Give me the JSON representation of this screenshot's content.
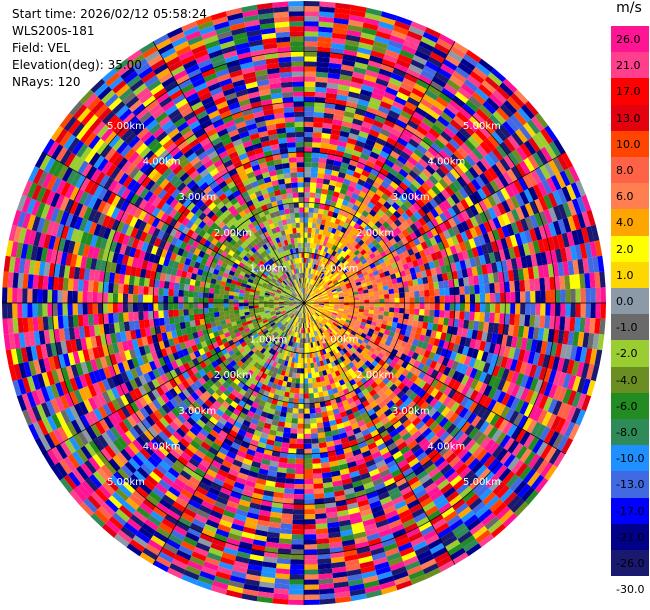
{
  "info": {
    "start_time": "Start time: 2026/02/12 05:58:24",
    "instrument": "WLS200s-181",
    "field": "Field: VEL",
    "elevation": "Elevation(deg): 35.00",
    "nrays": "NRays: 120"
  },
  "chart_data": {
    "type": "heatmap",
    "projection": "polar-ppi",
    "field": "VEL",
    "units": "m/s",
    "nrays": 120,
    "elevation_deg": 35.0,
    "range_rings_km": [
      1,
      2,
      3,
      4,
      5
    ],
    "range_labels": [
      "1.00km",
      "2.00km",
      "3.00km",
      "4.00km",
      "5.00km"
    ],
    "radial_lines_deg": [
      0,
      30,
      60,
      90,
      120,
      150,
      180,
      210,
      240,
      270,
      300,
      330
    ],
    "max_range_km": 6.0,
    "colorbar": {
      "unit": "m/s",
      "ticks": [
        "26.0",
        "21.0",
        "17.0",
        "13.0",
        "10.0",
        "8.0",
        "6.0",
        "4.0",
        "2.0",
        "1.0",
        "0.0",
        "-1.0",
        "-2.0",
        "-4.0",
        "-6.0",
        "-8.0",
        "-10.0",
        "-13.0",
        "-17.0",
        "-21.0",
        "-26.0",
        "-30.0"
      ],
      "colors": [
        "#ff1493",
        "#ff3e8e",
        "#ff0000",
        "#e3000f",
        "#ff4500",
        "#ff6347",
        "#ff7f50",
        "#ffa500",
        "#ffff00",
        "#ffd700",
        "#8c9aa8",
        "#6a6a6a",
        "#9acd32",
        "#6b8e23",
        "#228b22",
        "#2e8b57",
        "#1e90ff",
        "#4169e1",
        "#0000ff",
        "#00008b",
        "#191970",
        "#191970"
      ]
    }
  }
}
